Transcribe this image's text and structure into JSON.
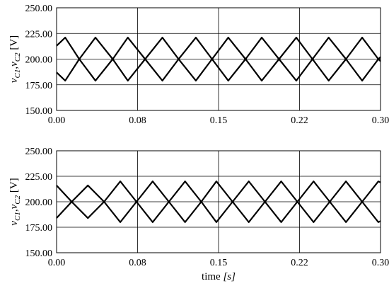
{
  "chart_data": [
    {
      "type": "line",
      "title": "",
      "ylabel_parts": {
        "v1": "v",
        "s1": "C1",
        "sep": ",",
        "v2": "v",
        "s2": "C2",
        "unit": " [V]"
      },
      "xlabel_parts": null,
      "xlim": [
        0.0,
        0.3
      ],
      "ylim": [
        150.0,
        250.0
      ],
      "x_ticks": [
        0.0,
        0.075,
        0.15,
        0.225,
        0.3
      ],
      "x_tick_labels": [
        "0.00",
        "0.08",
        "0.15",
        "0.22",
        "0.30"
      ],
      "y_ticks": [
        150,
        175,
        200,
        225,
        250
      ],
      "y_tick_labels": [
        "150.00",
        "175.00",
        "200.00",
        "225.00",
        "250.00"
      ],
      "grid": true,
      "series": [
        {
          "x": [
            0.0,
            0.008,
            0.021,
            0.036,
            0.052,
            0.066,
            0.082,
            0.098,
            0.113,
            0.129,
            0.144,
            0.159,
            0.175,
            0.19,
            0.206,
            0.222,
            0.237,
            0.252,
            0.268,
            0.283,
            0.298,
            0.3
          ],
          "y": [
            213,
            221,
            200,
            179,
            200,
            221,
            200,
            179,
            200,
            221,
            200,
            179,
            200,
            221,
            200,
            179,
            200,
            221,
            200,
            179,
            200,
            202
          ]
        },
        {
          "x": [
            0.0,
            0.008,
            0.021,
            0.036,
            0.052,
            0.066,
            0.082,
            0.098,
            0.113,
            0.129,
            0.144,
            0.159,
            0.175,
            0.19,
            0.206,
            0.222,
            0.237,
            0.252,
            0.268,
            0.283,
            0.298,
            0.3
          ],
          "y": [
            187,
            179,
            200,
            221,
            200,
            179,
            200,
            221,
            200,
            179,
            200,
            221,
            200,
            179,
            200,
            221,
            200,
            179,
            200,
            221,
            200,
            198
          ]
        }
      ]
    },
    {
      "type": "line",
      "title": "",
      "ylabel_parts": {
        "v1": "v",
        "s1": "C1",
        "sep": ",",
        "v2": "v",
        "s2": "C2",
        "unit": " [V]"
      },
      "xlabel_parts": {
        "text": "time ",
        "unit": "[s]"
      },
      "xlim": [
        0.0,
        0.3
      ],
      "ylim": [
        150.0,
        250.0
      ],
      "x_ticks": [
        0.0,
        0.075,
        0.15,
        0.225,
        0.3
      ],
      "x_tick_labels": [
        "0.00",
        "0.08",
        "0.15",
        "0.22",
        "0.30"
      ],
      "y_ticks": [
        150,
        175,
        200,
        225,
        250
      ],
      "y_tick_labels": [
        "150.00",
        "175.00",
        "200.00",
        "225.00",
        "250.00"
      ],
      "grid": true,
      "series": [
        {
          "x": [
            0.0,
            0.014,
            0.029,
            0.044,
            0.059,
            0.074,
            0.089,
            0.104,
            0.119,
            0.134,
            0.148,
            0.163,
            0.178,
            0.193,
            0.208,
            0.223,
            0.238,
            0.253,
            0.268,
            0.283,
            0.298,
            0.3
          ],
          "y": [
            216,
            200,
            184,
            200,
            220,
            200,
            180,
            200,
            220,
            200,
            180,
            200,
            220,
            200,
            180,
            200,
            220,
            200,
            180,
            200,
            220,
            219
          ]
        },
        {
          "x": [
            0.0,
            0.014,
            0.029,
            0.044,
            0.059,
            0.074,
            0.089,
            0.104,
            0.119,
            0.134,
            0.148,
            0.163,
            0.178,
            0.193,
            0.208,
            0.223,
            0.238,
            0.253,
            0.268,
            0.283,
            0.298,
            0.3
          ],
          "y": [
            184,
            200,
            216,
            200,
            180,
            200,
            220,
            200,
            180,
            200,
            220,
            200,
            180,
            200,
            220,
            200,
            180,
            200,
            220,
            200,
            180,
            181
          ]
        }
      ]
    }
  ]
}
